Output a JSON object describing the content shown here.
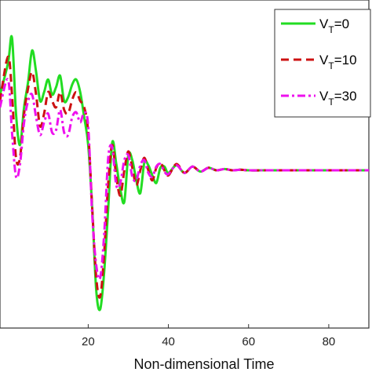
{
  "chart_data": {
    "type": "line",
    "title": "",
    "xlabel": "Non-dimensional Time",
    "ylabel": "",
    "xlim": [
      -2,
      90
    ],
    "ylim": [
      -1.25,
      1.35
    ],
    "xticks": [
      {
        "value": 20,
        "label": "20"
      },
      {
        "value": 40,
        "label": "40"
      },
      {
        "value": 60,
        "label": "60"
      },
      {
        "value": 80,
        "label": "80"
      }
    ],
    "grid": false,
    "legend_position": "top-right",
    "series": [
      {
        "name_main": "V",
        "name_sub": "T",
        "name_value": "=0",
        "color": "#22dd22",
        "dash": "solid",
        "x": [
          -2,
          0,
          1,
          2,
          3,
          4,
          5,
          6,
          7,
          8,
          9,
          10,
          11,
          12,
          13,
          14,
          15,
          16,
          17,
          18,
          19,
          20,
          21,
          22,
          23,
          24,
          25,
          26,
          27,
          28,
          29,
          30,
          31,
          32,
          33,
          34,
          35,
          36,
          37,
          38,
          39,
          40,
          42,
          44,
          46,
          48,
          50,
          52,
          54,
          56,
          58,
          60,
          65,
          70,
          75,
          80,
          85,
          90
        ],
        "y": [
          0.6,
          0.85,
          1.05,
          0.45,
          0.2,
          0.5,
          0.7,
          0.95,
          0.78,
          0.55,
          0.62,
          0.72,
          0.6,
          0.66,
          0.75,
          0.55,
          0.58,
          0.68,
          0.72,
          0.62,
          0.42,
          0.2,
          -0.3,
          -0.95,
          -1.1,
          -0.8,
          -0.3,
          0.22,
          0.05,
          -0.15,
          -0.25,
          0.12,
          0.08,
          -0.08,
          -0.18,
          0.06,
          0.04,
          -0.04,
          -0.1,
          0.02,
          0.03,
          -0.02,
          0.04,
          -0.02,
          0.03,
          -0.01,
          0.02,
          0.0,
          0.01,
          0.0,
          0.005,
          0.0,
          0.0,
          0.0,
          0.0,
          0.0,
          0.0,
          0.0
        ]
      },
      {
        "name_main": "V",
        "name_sub": "T",
        "name_value": "=10",
        "color": "#cc1111",
        "dash": "10,6",
        "x": [
          -2,
          0,
          1,
          2,
          3,
          4,
          5,
          6,
          7,
          8,
          9,
          10,
          11,
          12,
          13,
          14,
          15,
          16,
          17,
          18,
          19,
          20,
          21,
          22,
          23,
          24,
          25,
          26,
          27,
          28,
          29,
          30,
          31,
          32,
          33,
          34,
          35,
          36,
          37,
          38,
          39,
          40,
          42,
          44,
          46,
          48,
          50,
          52,
          54,
          56,
          58,
          60,
          65,
          70,
          75,
          80,
          85,
          90
        ],
        "y": [
          0.55,
          0.9,
          0.6,
          0.1,
          0.1,
          0.45,
          0.65,
          0.78,
          0.6,
          0.35,
          0.45,
          0.62,
          0.55,
          0.5,
          0.62,
          0.48,
          0.45,
          0.56,
          0.62,
          0.55,
          0.5,
          0.3,
          -0.3,
          -0.85,
          -1.0,
          -0.65,
          -0.1,
          0.2,
          -0.05,
          -0.2,
          0.0,
          0.15,
          0.02,
          -0.12,
          0.0,
          0.1,
          0.0,
          -0.08,
          0.02,
          0.06,
          0.0,
          -0.04,
          0.05,
          -0.02,
          0.03,
          -0.01,
          0.02,
          0.0,
          0.01,
          0.0,
          0.005,
          0.0,
          0.0,
          0.0,
          0.0,
          0.0,
          0.0,
          0.0
        ]
      },
      {
        "name_main": "V",
        "name_sub": "T",
        "name_value": "=30",
        "color": "#ee11ee",
        "dash": "10,4,3,4",
        "x": [
          -2,
          0,
          1,
          2,
          3,
          4,
          5,
          6,
          7,
          8,
          9,
          10,
          11,
          12,
          13,
          14,
          15,
          16,
          17,
          18,
          19,
          20,
          21,
          22,
          23,
          24,
          25,
          26,
          27,
          28,
          29,
          30,
          31,
          32,
          33,
          34,
          35,
          36,
          37,
          38,
          39,
          40,
          42,
          44,
          46,
          48,
          50,
          52,
          54,
          56,
          58,
          60,
          65,
          70,
          75,
          80,
          85,
          90
        ],
        "y": [
          0.5,
          0.72,
          0.3,
          -0.05,
          0.05,
          0.38,
          0.55,
          0.6,
          0.42,
          0.28,
          0.38,
          0.45,
          0.3,
          0.32,
          0.48,
          0.3,
          0.28,
          0.42,
          0.46,
          0.38,
          0.46,
          0.35,
          -0.35,
          -0.75,
          -0.85,
          -0.5,
          0.1,
          0.18,
          -0.12,
          -0.1,
          0.08,
          0.12,
          -0.05,
          -0.08,
          0.04,
          0.08,
          -0.02,
          -0.05,
          0.03,
          0.05,
          -0.01,
          -0.03,
          0.04,
          -0.02,
          0.03,
          -0.01,
          0.02,
          0.0,
          0.01,
          0.0,
          0.005,
          0.0,
          0.0,
          0.0,
          0.0,
          0.0,
          0.0,
          0.0
        ]
      }
    ]
  }
}
